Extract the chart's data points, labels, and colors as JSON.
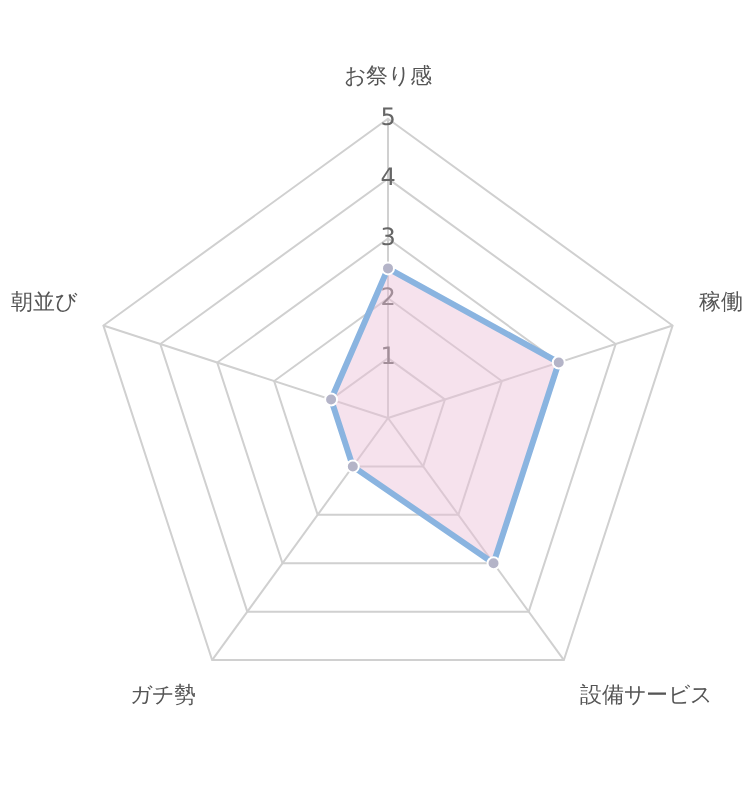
{
  "chart_data": {
    "type": "radar",
    "categories": [
      "お祭り感",
      "稼働",
      "設備サービス",
      "ガチ勢",
      "朝並び"
    ],
    "series": [
      {
        "color": "#8ab4e0",
        "values": [
          2.5,
          3,
          3,
          1,
          1
        ]
      }
    ],
    "ylim": [
      0,
      5
    ],
    "yticks": [
      1,
      2,
      3,
      4,
      5
    ],
    "grid": true,
    "legend": false,
    "marker": "circle"
  }
}
